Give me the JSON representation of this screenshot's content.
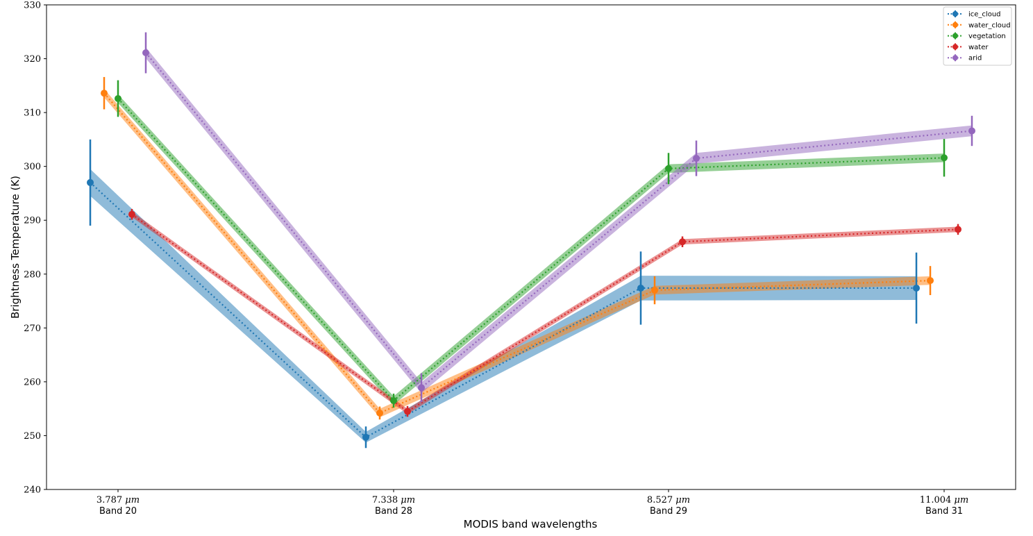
{
  "chart_data": {
    "type": "line",
    "xlabel": "MODIS band wavelengths",
    "ylabel": "Brightness Temperature (K)",
    "ylim": [
      240,
      330
    ],
    "yticks": [
      240,
      250,
      260,
      270,
      280,
      290,
      300,
      310,
      320,
      330
    ],
    "categories": [
      {
        "wavelength": "3.787",
        "unit": "μm",
        "band": "Band 20"
      },
      {
        "wavelength": "7.338",
        "unit": "μm",
        "band": "Band 28"
      },
      {
        "wavelength": "8.527",
        "unit": "μm",
        "band": "Band 29"
      },
      {
        "wavelength": "11.004",
        "unit": "μm",
        "band": "Band 31"
      }
    ],
    "legend_position": "top-right",
    "series": [
      {
        "name": "ice_cloud",
        "color": "#1f77b4",
        "values": [
          297.0,
          249.7,
          277.4,
          277.4
        ],
        "err": [
          8.0,
          2.0,
          6.8,
          6.6
        ],
        "band_halfwidth": [
          2.5,
          1.0,
          2.3,
          2.2
        ]
      },
      {
        "name": "water_cloud",
        "color": "#ff7f0e",
        "values": [
          313.6,
          254.2,
          277.0,
          278.8
        ],
        "err": [
          3.0,
          1.2,
          2.6,
          2.7
        ],
        "band_halfwidth": [
          0.8,
          0.8,
          0.8,
          0.8
        ]
      },
      {
        "name": "vegetation",
        "color": "#2ca02c",
        "values": [
          312.6,
          256.5,
          299.6,
          301.6
        ],
        "err": [
          3.4,
          1.3,
          2.9,
          3.5
        ],
        "band_halfwidth": [
          0.8,
          0.8,
          0.8,
          0.8
        ]
      },
      {
        "name": "water",
        "color": "#d62728",
        "values": [
          291.1,
          254.5,
          286.0,
          288.3
        ],
        "err": [
          1.0,
          1.0,
          1.0,
          1.0
        ],
        "band_halfwidth": [
          0.5,
          0.5,
          0.5,
          0.5
        ]
      },
      {
        "name": "arid",
        "color": "#9467bd",
        "values": [
          321.1,
          258.9,
          301.5,
          306.6
        ],
        "err": [
          3.8,
          2.7,
          3.3,
          2.8
        ],
        "band_halfwidth": [
          1.0,
          1.0,
          1.0,
          1.0
        ]
      }
    ]
  }
}
